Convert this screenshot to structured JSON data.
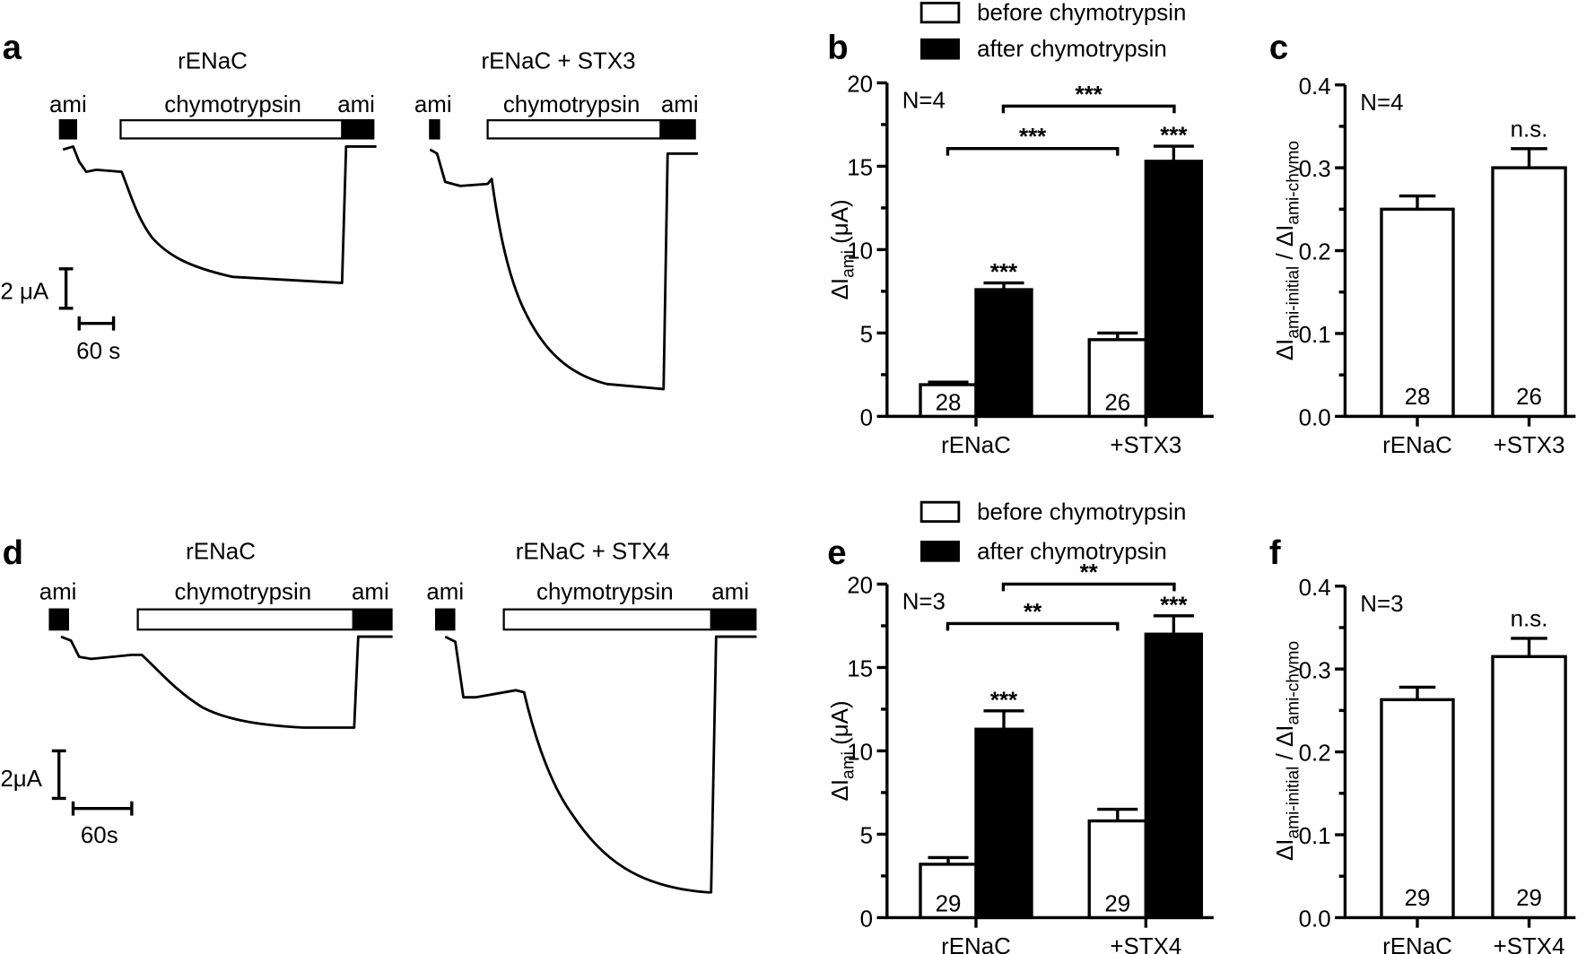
{
  "panel_letters": {
    "a": "a",
    "b": "b",
    "c": "c",
    "d": "d",
    "e": "e",
    "f": "f"
  },
  "traces": {
    "a": {
      "left_title": "rENaC",
      "right_title": "rENaC + STX3",
      "ami": "ami",
      "chymo": "chymotrypsin",
      "scale_current": "2 μA",
      "scale_time": "60 s"
    },
    "d": {
      "left_title": "rENaC",
      "right_title": "rENaC + STX4",
      "ami": "ami",
      "chymo": "chymotrypsin",
      "scale_current": "2μA",
      "scale_time": "60s"
    }
  },
  "legend": {
    "before": "before chymotrypsin",
    "after": "after chymotrypsin",
    "before_color": "#ffffff",
    "after_color": "#000000"
  },
  "chart_data": [
    {
      "panel": "b",
      "type": "bar",
      "categories": [
        "rENaC",
        "+STX3"
      ],
      "ylabel_main": "ΔI",
      "ylabel_sub": "ami",
      "ylabel_unit": " (μA)",
      "ylim": [
        0,
        20
      ],
      "yticks": [
        "0",
        "5",
        "10",
        "15",
        "20"
      ],
      "minor_step": 2.5,
      "annotation": "N=4",
      "series": [
        {
          "name": "before chymotrypsin",
          "values": [
            1.9,
            4.6
          ],
          "errors": [
            0.15,
            0.4
          ],
          "n": [
            "28",
            "26"
          ],
          "stars": [
            "",
            ""
          ]
        },
        {
          "name": "after chymotrypsin",
          "values": [
            7.6,
            15.3
          ],
          "errors": [
            0.4,
            0.9
          ],
          "stars": [
            "***",
            "***"
          ]
        }
      ],
      "brackets": [
        {
          "label": "***",
          "from": "rENaC before",
          "to": "+STX3 before"
        },
        {
          "label": "***",
          "from": "rENaC after",
          "to": "+STX3 after"
        }
      ]
    },
    {
      "panel": "c",
      "type": "bar",
      "categories": [
        "rENaC",
        "+STX3"
      ],
      "ylabel_main": "ΔI",
      "ylabel_sub": "ami-initial",
      "ylabel_mid": " / ΔI",
      "ylabel_sub2": "ami-chymo",
      "ylim": [
        0,
        0.4
      ],
      "yticks": [
        "0.0",
        "0.1",
        "0.2",
        "0.3",
        "0.4"
      ],
      "minor_step": 0.05,
      "annotation": "N=4",
      "series": [
        {
          "values": [
            0.25,
            0.3
          ],
          "errors": [
            0.016,
            0.023
          ],
          "n": [
            "28",
            "26"
          ],
          "stars": [
            "",
            "n.s."
          ]
        }
      ]
    },
    {
      "panel": "e",
      "type": "bar",
      "categories": [
        "rENaC",
        "+STX4"
      ],
      "ylabel_main": "ΔI",
      "ylabel_sub": "ami",
      "ylabel_unit": " (μA)",
      "ylim": [
        0,
        20
      ],
      "yticks": [
        "0",
        "5",
        "10",
        "15",
        "20"
      ],
      "minor_step": 2.5,
      "annotation": "N=3",
      "series": [
        {
          "name": "before chymotrypsin",
          "values": [
            3.2,
            5.8
          ],
          "errors": [
            0.4,
            0.7
          ],
          "n": [
            "29",
            "29"
          ],
          "stars": [
            "",
            ""
          ]
        },
        {
          "name": "after chymotrypsin",
          "values": [
            11.3,
            17.0
          ],
          "errors": [
            1.1,
            1.1
          ],
          "stars": [
            "***",
            "***"
          ]
        }
      ],
      "brackets": [
        {
          "label": "**",
          "from": "rENaC before",
          "to": "+STX4 before"
        },
        {
          "label": "**",
          "from": "rENaC after",
          "to": "+STX4 after"
        }
      ]
    },
    {
      "panel": "f",
      "type": "bar",
      "categories": [
        "rENaC",
        "+STX4"
      ],
      "ylabel_main": "ΔI",
      "ylabel_sub": "ami-initial",
      "ylabel_mid": " / ΔI",
      "ylabel_sub2": "ami-chymo",
      "ylim": [
        0,
        0.4
      ],
      "yticks": [
        "0.0",
        "0.1",
        "0.2",
        "0.3",
        "0.4"
      ],
      "minor_step": 0.05,
      "annotation": "N=3",
      "series": [
        {
          "values": [
            0.263,
            0.315
          ],
          "errors": [
            0.015,
            0.022
          ],
          "n": [
            "29",
            "29"
          ],
          "stars": [
            "",
            "n.s."
          ]
        }
      ]
    }
  ]
}
